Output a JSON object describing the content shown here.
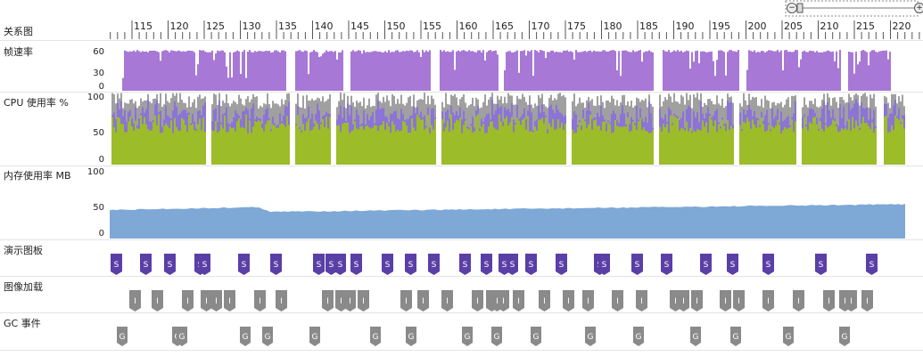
{
  "lanes": {
    "relationship": {
      "label": "关系图"
    },
    "fps": {
      "label": "帧速率",
      "ticks": [
        "60",
        "30",
        "0"
      ],
      "color": "#a878d6"
    },
    "cpu": {
      "label": "CPU 使用率 %",
      "ticks": [
        "100",
        "50",
        "0"
      ],
      "colors": {
        "gray": "#a0a0a0",
        "purple": "#8b74d6",
        "green": "#9cbc2a"
      }
    },
    "memory": {
      "label": "内存使用率 MB",
      "ticks": [
        "100",
        "50",
        "0"
      ],
      "color": "#7ea8d6"
    },
    "storyboard": {
      "label": "演示图板",
      "marker": "S",
      "color": "#5a3fa6"
    },
    "image_load": {
      "label": "图像加载",
      "marker": "I",
      "color": "#8a8a8a"
    },
    "gc": {
      "label": "GC 事件",
      "marker": "G",
      "color": "#8a8a8a"
    }
  },
  "ruler": {
    "labels": [
      "115",
      "120",
      "125",
      "130",
      "135",
      "140",
      "145",
      "150",
      "155",
      "160",
      "165",
      "170",
      "175",
      "180",
      "185",
      "190",
      "195",
      "200",
      "205",
      "210",
      "215",
      "220"
    ]
  },
  "zoom": {
    "minus": "−",
    "plus": "+"
  }
}
